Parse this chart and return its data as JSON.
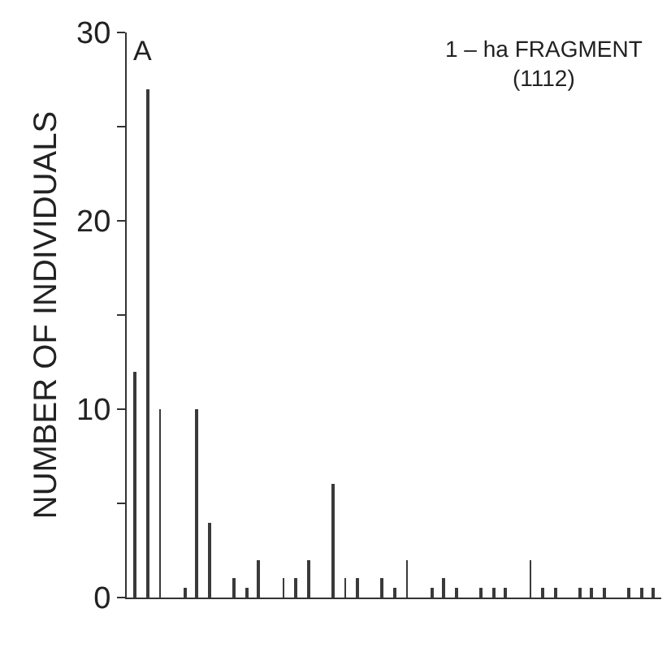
{
  "chart_data": {
    "type": "bar",
    "ylabel": "NUMBER OF INDIVIDUALS",
    "annotations": [
      "A",
      "1 – ha FRAGMENT\n(1112)"
    ],
    "categories": [
      null,
      null,
      null,
      null,
      null,
      null,
      null,
      null,
      null,
      null,
      null,
      null,
      null,
      null,
      null,
      null,
      null,
      null,
      null,
      null,
      null,
      null,
      null,
      null,
      null,
      null,
      null,
      null,
      null,
      null,
      null,
      null,
      null,
      null,
      null,
      null,
      null,
      null,
      null,
      null,
      null,
      null,
      null
    ],
    "values": [
      12,
      27,
      10,
      null,
      0.5,
      10,
      4,
      null,
      1,
      0.5,
      2,
      null,
      1,
      1,
      2,
      null,
      6,
      1,
      1,
      null,
      1,
      0.5,
      2,
      null,
      0.5,
      1,
      0.5,
      null,
      0.5,
      0.5,
      0.5,
      null,
      2,
      0.5,
      0.5,
      null,
      0.5,
      0.5,
      0.5,
      null,
      0.5,
      0.5,
      0.5
    ],
    "color": "#3a3a3a",
    "ylim": [
      0,
      30
    ],
    "yticks": [
      0,
      {
        "value": 5,
        "label": null
      },
      10,
      {
        "value": 15,
        "label": null
      },
      20,
      {
        "value": 25,
        "label": null
      },
      30
    ],
    "tick_labels": "y"
  }
}
